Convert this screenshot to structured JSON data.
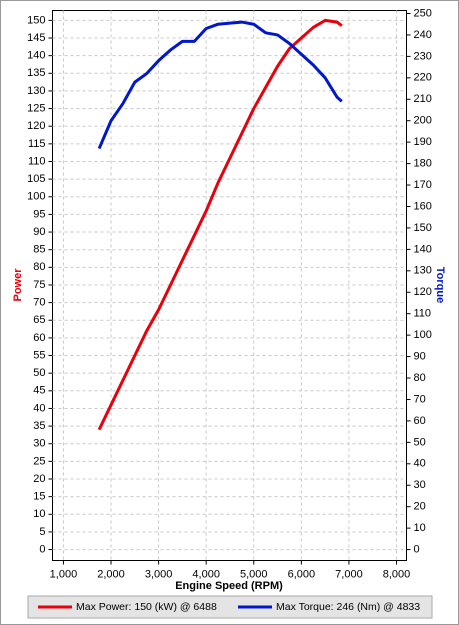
{
  "chart_data": {
    "type": "line",
    "x_label": "Engine Speed (RPM)",
    "y_label": "Power",
    "y2_label": "Torque",
    "x": [
      1750,
      2000,
      2250,
      2500,
      2750,
      3000,
      3250,
      3500,
      3750,
      4000,
      4250,
      4500,
      4750,
      5000,
      5250,
      5500,
      5750,
      6000,
      6250,
      6500,
      6750,
      6850
    ],
    "series": [
      {
        "name": "Max Power: 150 (kW) @ 6488",
        "color": "#e8000b",
        "axis": "y",
        "values": [
          34,
          41,
          48,
          55,
          62,
          68,
          75,
          82,
          89,
          96,
          104,
          111,
          118,
          125,
          131,
          137,
          142,
          145,
          148,
          150,
          149.5,
          148.5
        ]
      },
      {
        "name": "Max Torque: 246 (Nm) @ 4833",
        "color": "#0018c8",
        "axis": "y2",
        "values": [
          187,
          200,
          208,
          218,
          222,
          228,
          233,
          237,
          237,
          243,
          245,
          245.5,
          246,
          245,
          241,
          240,
          236,
          231,
          226,
          220,
          211,
          209
        ]
      }
    ],
    "xlim": [
      770,
      8210
    ],
    "xticks": [
      {
        "value": 1000,
        "label": "1,000"
      },
      {
        "value": 2000,
        "label": "2,000"
      },
      {
        "value": 3000,
        "label": "3,000"
      },
      {
        "value": 4000,
        "label": "4,000"
      },
      {
        "value": 5000,
        "label": "5,000"
      },
      {
        "value": 6000,
        "label": "6,000"
      },
      {
        "value": 7000,
        "label": "7,000"
      },
      {
        "value": 8000,
        "label": "8,000"
      }
    ],
    "ylim": [
      -3.1,
      152.8
    ],
    "yticks": [
      0,
      5,
      10,
      15,
      20,
      25,
      30,
      35,
      40,
      45,
      50,
      55,
      60,
      65,
      70,
      75,
      80,
      85,
      90,
      95,
      100,
      105,
      110,
      115,
      120,
      125,
      130,
      135,
      140,
      145,
      150
    ],
    "y2lim": [
      -5.1,
      251.4
    ],
    "y2ticks": [
      0,
      10,
      20,
      30,
      40,
      50,
      60,
      70,
      80,
      90,
      100,
      110,
      120,
      130,
      140,
      150,
      160,
      170,
      180,
      190,
      200,
      210,
      220,
      230,
      240,
      250
    ],
    "grid": true
  }
}
